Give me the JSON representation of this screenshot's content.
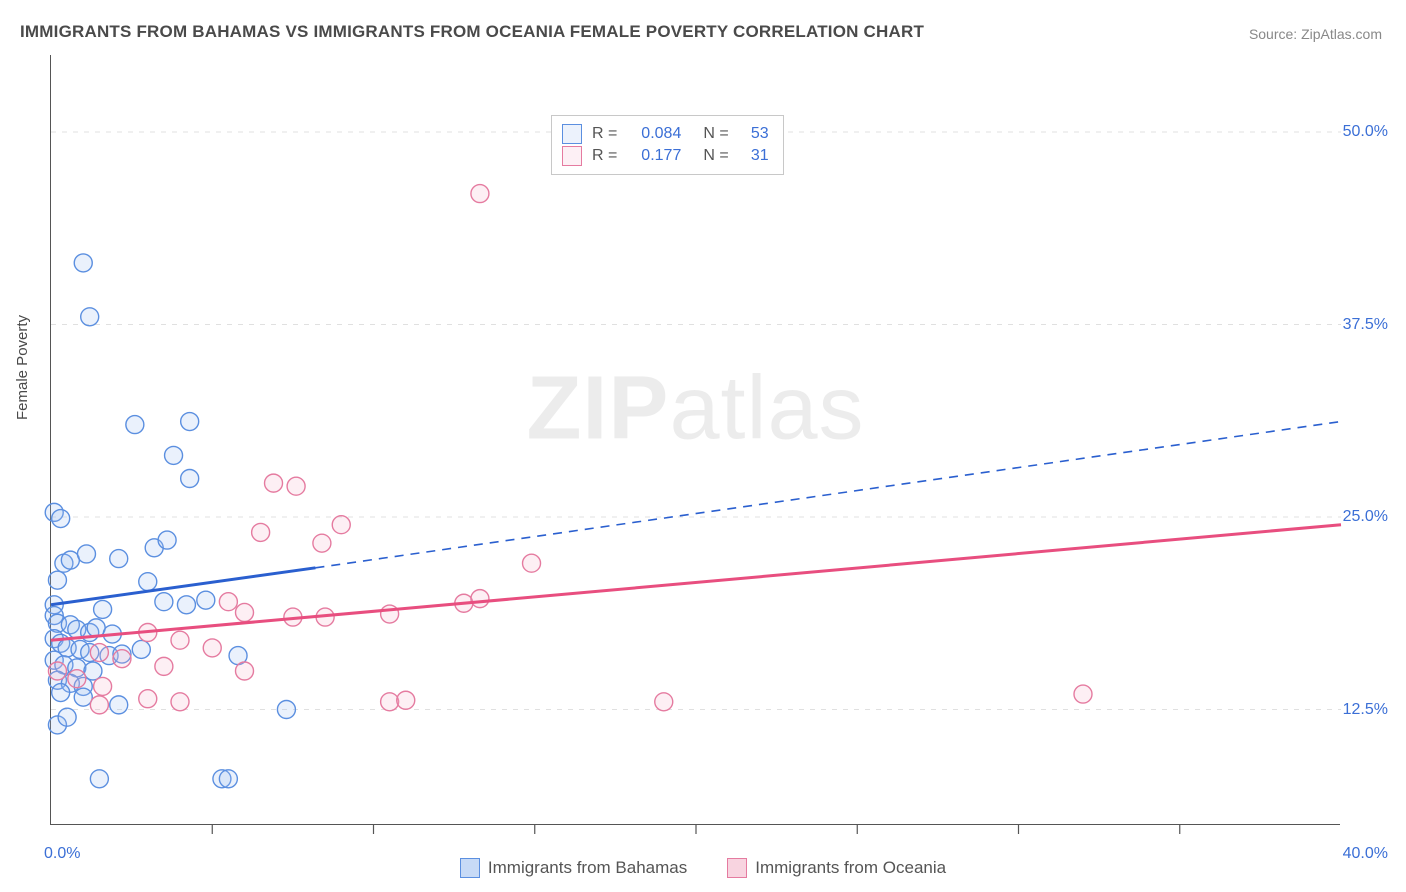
{
  "title": "IMMIGRANTS FROM BAHAMAS VS IMMIGRANTS FROM OCEANIA FEMALE POVERTY CORRELATION CHART",
  "source": "Source: ZipAtlas.com",
  "ylabel": "Female Poverty",
  "watermark_zip": "ZIP",
  "watermark_atlas": "atlas",
  "chart": {
    "type": "scatter",
    "xlim": [
      0,
      40
    ],
    "ylim": [
      5,
      55
    ],
    "x_ticks_minor": [
      5,
      10,
      15,
      20,
      25,
      30,
      35
    ],
    "y_gridlines": [
      12.5,
      25.0,
      37.5,
      50.0
    ],
    "x_tick_labels": [
      {
        "x": 0,
        "label": "0.0%"
      },
      {
        "x": 40,
        "label": "40.0%"
      }
    ],
    "y_tick_labels": [
      {
        "y": 12.5,
        "label": "12.5%"
      },
      {
        "y": 25.0,
        "label": "25.0%"
      },
      {
        "y": 37.5,
        "label": "37.5%"
      },
      {
        "y": 50.0,
        "label": "50.0%"
      }
    ],
    "background_color": "#ffffff",
    "grid_color": "#e0e0e0",
    "axis_color": "#555555",
    "tick_label_color": "#3b6fd6",
    "marker_radius": 9,
    "marker_stroke_width": 1.4,
    "marker_fill_opacity": 0.22,
    "trend_line_width": 3,
    "trend_dash": "9,7",
    "series": [
      {
        "name": "Immigrants from Bahamas",
        "color_stroke": "#5b8fe0",
        "color_fill": "#9ebef0",
        "trend_color": "#2a5fcf",
        "r": 0.084,
        "n": 53,
        "trend_solid": {
          "x1": 0,
          "y1": 19.3,
          "x2": 8.2,
          "y2": 21.7
        },
        "trend_dash": {
          "x1": 8.2,
          "y1": 21.7,
          "x2": 40,
          "y2": 31.2
        },
        "points": [
          [
            1.0,
            41.5
          ],
          [
            1.2,
            38.0
          ],
          [
            2.6,
            31.0
          ],
          [
            4.3,
            31.2
          ],
          [
            3.8,
            29.0
          ],
          [
            4.3,
            27.5
          ],
          [
            0.1,
            25.3
          ],
          [
            0.3,
            24.9
          ],
          [
            3.2,
            23.0
          ],
          [
            3.6,
            23.5
          ],
          [
            0.4,
            22.0
          ],
          [
            0.6,
            22.2
          ],
          [
            1.1,
            22.6
          ],
          [
            2.1,
            22.3
          ],
          [
            3.0,
            20.8
          ],
          [
            0.2,
            20.9
          ],
          [
            3.5,
            19.5
          ],
          [
            4.2,
            19.3
          ],
          [
            4.8,
            19.6
          ],
          [
            1.6,
            19.0
          ],
          [
            0.1,
            19.3
          ],
          [
            0.1,
            18.6
          ],
          [
            0.2,
            18.1
          ],
          [
            0.6,
            18.0
          ],
          [
            0.8,
            17.7
          ],
          [
            1.2,
            17.5
          ],
          [
            1.4,
            17.8
          ],
          [
            1.9,
            17.4
          ],
          [
            0.1,
            17.1
          ],
          [
            0.3,
            16.8
          ],
          [
            0.5,
            16.5
          ],
          [
            0.9,
            16.4
          ],
          [
            1.2,
            16.2
          ],
          [
            1.8,
            16.0
          ],
          [
            2.2,
            16.1
          ],
          [
            2.8,
            16.4
          ],
          [
            5.8,
            16.0
          ],
          [
            0.1,
            15.7
          ],
          [
            0.4,
            15.4
          ],
          [
            0.8,
            15.2
          ],
          [
            1.3,
            15.0
          ],
          [
            0.2,
            14.4
          ],
          [
            0.6,
            14.2
          ],
          [
            1.0,
            14.0
          ],
          [
            2.1,
            12.8
          ],
          [
            7.3,
            12.5
          ],
          [
            1.0,
            13.3
          ],
          [
            0.3,
            13.6
          ],
          [
            1.5,
            8.0
          ],
          [
            5.3,
            8.0
          ],
          [
            5.5,
            8.0
          ],
          [
            0.2,
            11.5
          ],
          [
            0.5,
            12.0
          ]
        ]
      },
      {
        "name": "Immigrants from Oceania",
        "color_stroke": "#e57ba0",
        "color_fill": "#f4b6cb",
        "trend_color": "#e84e7f",
        "r": 0.177,
        "n": 31,
        "trend_solid": {
          "x1": 0,
          "y1": 17.0,
          "x2": 40,
          "y2": 24.5
        },
        "trend_dash": null,
        "points": [
          [
            13.3,
            46.0
          ],
          [
            6.9,
            27.2
          ],
          [
            7.6,
            27.0
          ],
          [
            6.5,
            24.0
          ],
          [
            8.4,
            23.3
          ],
          [
            9.0,
            24.5
          ],
          [
            5.5,
            19.5
          ],
          [
            6.0,
            18.8
          ],
          [
            7.5,
            18.5
          ],
          [
            8.5,
            18.5
          ],
          [
            10.5,
            18.7
          ],
          [
            12.8,
            19.4
          ],
          [
            13.3,
            19.7
          ],
          [
            14.9,
            22.0
          ],
          [
            3.0,
            17.5
          ],
          [
            4.0,
            17.0
          ],
          [
            5.0,
            16.5
          ],
          [
            1.5,
            16.2
          ],
          [
            2.2,
            15.8
          ],
          [
            3.5,
            15.3
          ],
          [
            6.0,
            15.0
          ],
          [
            0.2,
            15.0
          ],
          [
            0.8,
            14.5
          ],
          [
            1.6,
            14.0
          ],
          [
            3.0,
            13.2
          ],
          [
            4.0,
            13.0
          ],
          [
            1.5,
            12.8
          ],
          [
            10.5,
            13.0
          ],
          [
            11.0,
            13.1
          ],
          [
            19.0,
            13.0
          ],
          [
            32.0,
            13.5
          ]
        ]
      }
    ],
    "legend_bottom": [
      {
        "label": "Immigrants from Bahamas",
        "stroke": "#5b8fe0",
        "fill": "#c7daf6"
      },
      {
        "label": "Immigrants from Oceania",
        "stroke": "#e57ba0",
        "fill": "#f8d4e0"
      }
    ]
  }
}
